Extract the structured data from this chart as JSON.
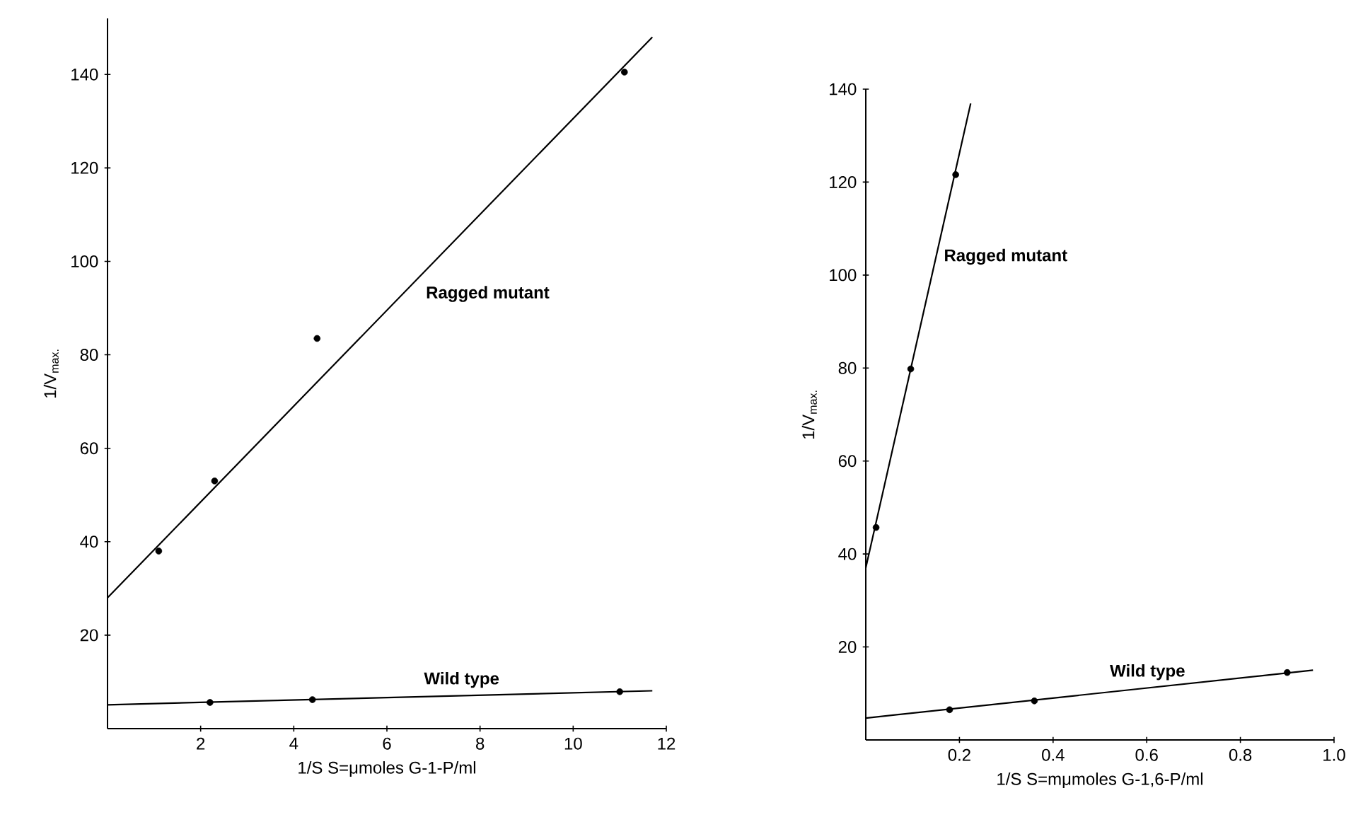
{
  "chart_data": [
    {
      "type": "scatter",
      "xlabel": "1/S   S=μmoles G-1-P/ml",
      "ylabel": "1/V$_{max.}$",
      "xlim": [
        0,
        12
      ],
      "ylim": [
        0,
        152
      ],
      "xticks": [
        2,
        4,
        6,
        8,
        10,
        12
      ],
      "yticks": [
        20,
        40,
        60,
        80,
        100,
        120,
        140
      ],
      "grid": false,
      "series": [
        {
          "marker": "circle",
          "color": "#000000",
          "x": [
            1.1,
            2.3,
            4.5,
            11.1
          ],
          "values": [
            38,
            53,
            83.5,
            140.5
          ]
        },
        {
          "marker": "circle",
          "color": "#000000",
          "x": [
            2.2,
            4.4,
            11
          ],
          "values": [
            5.6,
            6.2,
            7.9
          ]
        },
        {
          "name": "Ragged mutant",
          "type": "line",
          "marker": "none",
          "line_style": "solid",
          "color": "#000000",
          "x": [
            0,
            11.7
          ],
          "values": [
            28,
            148
          ]
        },
        {
          "name": "Wild type",
          "type": "line",
          "marker": "none",
          "line_style": "solid",
          "color": "#000000",
          "x": [
            0,
            11.7
          ],
          "values": [
            5.1,
            8.1
          ]
        }
      ]
    },
    {
      "type": "scatter",
      "xlabel": "1/S   S=mμmoles G-1,6-P/ml",
      "ylabel": "1/V$_{max.}$",
      "xlim": [
        0,
        1.0
      ],
      "ylim": [
        0,
        140
      ],
      "xticks": [
        {
          "value": 0.2,
          "label": "0.2"
        },
        {
          "value": 0.4,
          "label": "0.4"
        },
        {
          "value": 0.6,
          "label": "0.6"
        },
        {
          "value": 0.8,
          "label": "0.8"
        },
        {
          "value": 1.0,
          "label": "1.0"
        }
      ],
      "yticks": [
        20,
        40,
        60,
        80,
        100,
        120,
        140
      ],
      "grid": false,
      "series": [
        {
          "marker": "circle",
          "color": "#000000",
          "x": [
            0.022,
            0.096,
            0.192
          ],
          "values": [
            45.7,
            79.8,
            121.6
          ]
        },
        {
          "marker": "circle",
          "color": "#000000",
          "x": [
            0.179,
            0.36,
            0.9
          ],
          "values": [
            6.5,
            8.4,
            14.5
          ]
        },
        {
          "name": "Ragged mutant",
          "type": "line",
          "marker": "none",
          "line_style": "solid",
          "color": "#000000",
          "x": [
            0,
            0.224
          ],
          "values": [
            37,
            136.9
          ]
        },
        {
          "name": "Wild type",
          "type": "line",
          "marker": "none",
          "line_style": "solid",
          "color": "#000000",
          "x": [
            0,
            0.955
          ],
          "values": [
            4.7,
            15.0
          ]
        }
      ]
    }
  ]
}
